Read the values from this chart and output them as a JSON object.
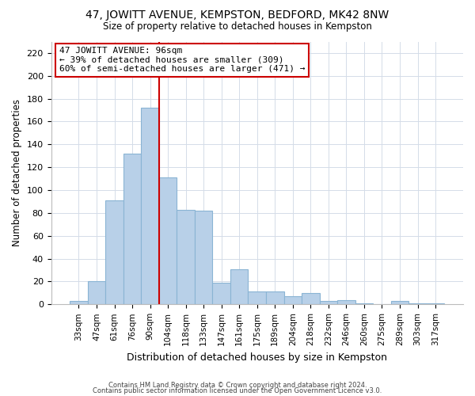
{
  "title": "47, JOWITT AVENUE, KEMPSTON, BEDFORD, MK42 8NW",
  "subtitle": "Size of property relative to detached houses in Kempston",
  "xlabel": "Distribution of detached houses by size in Kempston",
  "ylabel": "Number of detached properties",
  "bar_labels": [
    "33sqm",
    "47sqm",
    "61sqm",
    "76sqm",
    "90sqm",
    "104sqm",
    "118sqm",
    "133sqm",
    "147sqm",
    "161sqm",
    "175sqm",
    "189sqm",
    "204sqm",
    "218sqm",
    "232sqm",
    "246sqm",
    "260sqm",
    "275sqm",
    "289sqm",
    "303sqm",
    "317sqm"
  ],
  "bar_values": [
    3,
    20,
    91,
    132,
    172,
    111,
    83,
    82,
    19,
    31,
    11,
    11,
    7,
    10,
    3,
    4,
    1,
    0,
    3,
    1,
    1
  ],
  "bar_color": "#b8d0e8",
  "bar_edge_color": "#8ab4d4",
  "ylim": [
    0,
    230
  ],
  "yticks": [
    0,
    20,
    40,
    60,
    80,
    100,
    120,
    140,
    160,
    180,
    200,
    220
  ],
  "vline_x": 4.5,
  "vline_color": "#cc0000",
  "annotation_title": "47 JOWITT AVENUE: 96sqm",
  "annotation_line1": "← 39% of detached houses are smaller (309)",
  "annotation_line2": "60% of semi-detached houses are larger (471) →",
  "annotation_box_color": "#ffffff",
  "annotation_box_edge": "#cc0000",
  "footer1": "Contains HM Land Registry data © Crown copyright and database right 2024.",
  "footer2": "Contains public sector information licensed under the Open Government Licence v3.0.",
  "bg_color": "#ffffff",
  "grid_color": "#d4dce8"
}
